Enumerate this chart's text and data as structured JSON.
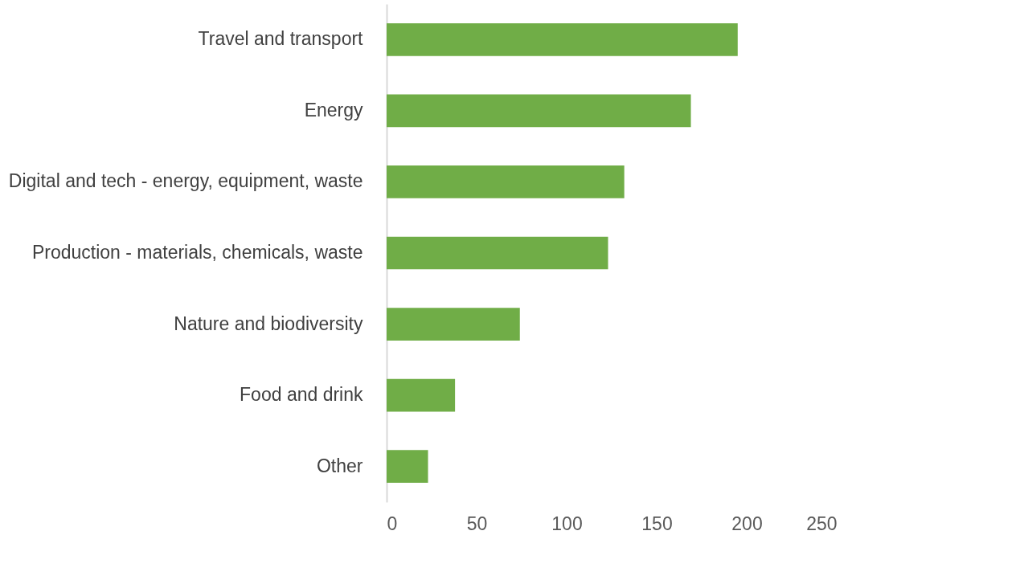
{
  "chart_data": {
    "type": "bar",
    "orientation": "horizontal",
    "categories": [
      "Travel and transport",
      "Energy",
      "Digital and tech - energy, equipment, waste",
      "Production - materials, chemicals, waste",
      "Nature and biodiversity",
      "Food and drink",
      "Other"
    ],
    "values": [
      195,
      169,
      132,
      123,
      74,
      38,
      23
    ],
    "color": "#70ad47",
    "xlim": [
      0,
      250
    ],
    "xticks": [
      0,
      50,
      100,
      150,
      200,
      250
    ],
    "grid": false
  }
}
